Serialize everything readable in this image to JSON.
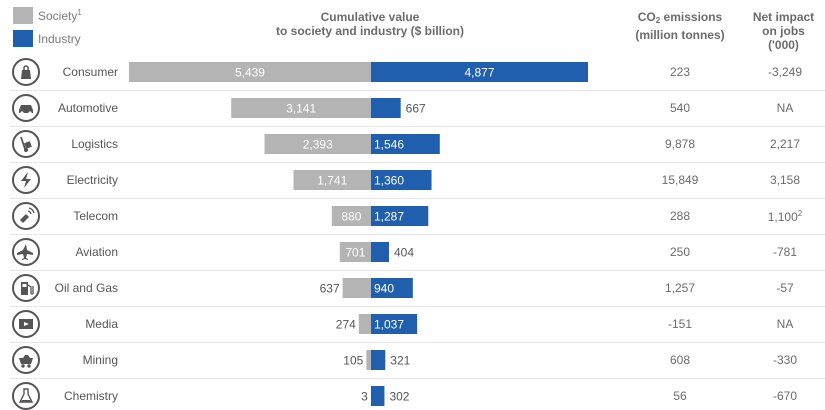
{
  "legend": {
    "society": "Society",
    "society_note": "1",
    "industry": "Industry"
  },
  "headers": {
    "value_line1": "Cumulative value",
    "value_line2": "to society and industry ($ billion)",
    "co2_line1a": "CO",
    "co2_line1_sub": "2",
    "co2_line1b": " emissions",
    "co2_line2": "(million tonnes)",
    "jobs_line1": "Net impact",
    "jobs_line2": "on jobs",
    "jobs_line3": "('000)"
  },
  "colors": {
    "society": "#b4b4b4",
    "industry": "#1f5fad"
  },
  "chart_data": {
    "type": "bar",
    "categories": [
      "Consumer",
      "Automotive",
      "Logistics",
      "Electricity",
      "Telecom",
      "Aviation",
      "Oil and Gas",
      "Media",
      "Mining",
      "Chemistry"
    ],
    "series": [
      {
        "name": "Society",
        "values": [
          5439,
          3141,
          2393,
          1741,
          880,
          701,
          637,
          274,
          105,
          3
        ]
      },
      {
        "name": "Industry",
        "values": [
          4877,
          667,
          1546,
          1360,
          1287,
          404,
          940,
          1037,
          321,
          302
        ]
      }
    ],
    "labels_society": [
      "5,439",
      "3,141",
      "2,393",
      "1,741",
      "880",
      "701",
      "637",
      "274",
      "105",
      "3"
    ],
    "labels_industry": [
      "4,877",
      "667",
      "1,546",
      "1,360",
      "1,287",
      "404",
      "940",
      "1,037",
      "321",
      "302"
    ],
    "co2_emissions": [
      "223",
      "540",
      "9,878",
      "15,849",
      "288",
      "250",
      "1,257",
      "-151",
      "608",
      "56"
    ],
    "net_impact_jobs": [
      "-3,249",
      "NA",
      "2,217",
      "3,158",
      "1,100",
      "-781",
      "-57",
      "NA",
      "-330",
      "-670"
    ],
    "net_impact_notes": [
      "",
      "",
      "",
      "",
      "2",
      "",
      "",
      "",
      "",
      ""
    ],
    "icons": [
      "shopping-bag-icon",
      "car-icon",
      "hand-truck-icon",
      "lightning-icon",
      "satellite-icon",
      "airplane-icon",
      "fuel-pump-icon",
      "film-icon",
      "mine-cart-icon",
      "flask-icon"
    ]
  }
}
